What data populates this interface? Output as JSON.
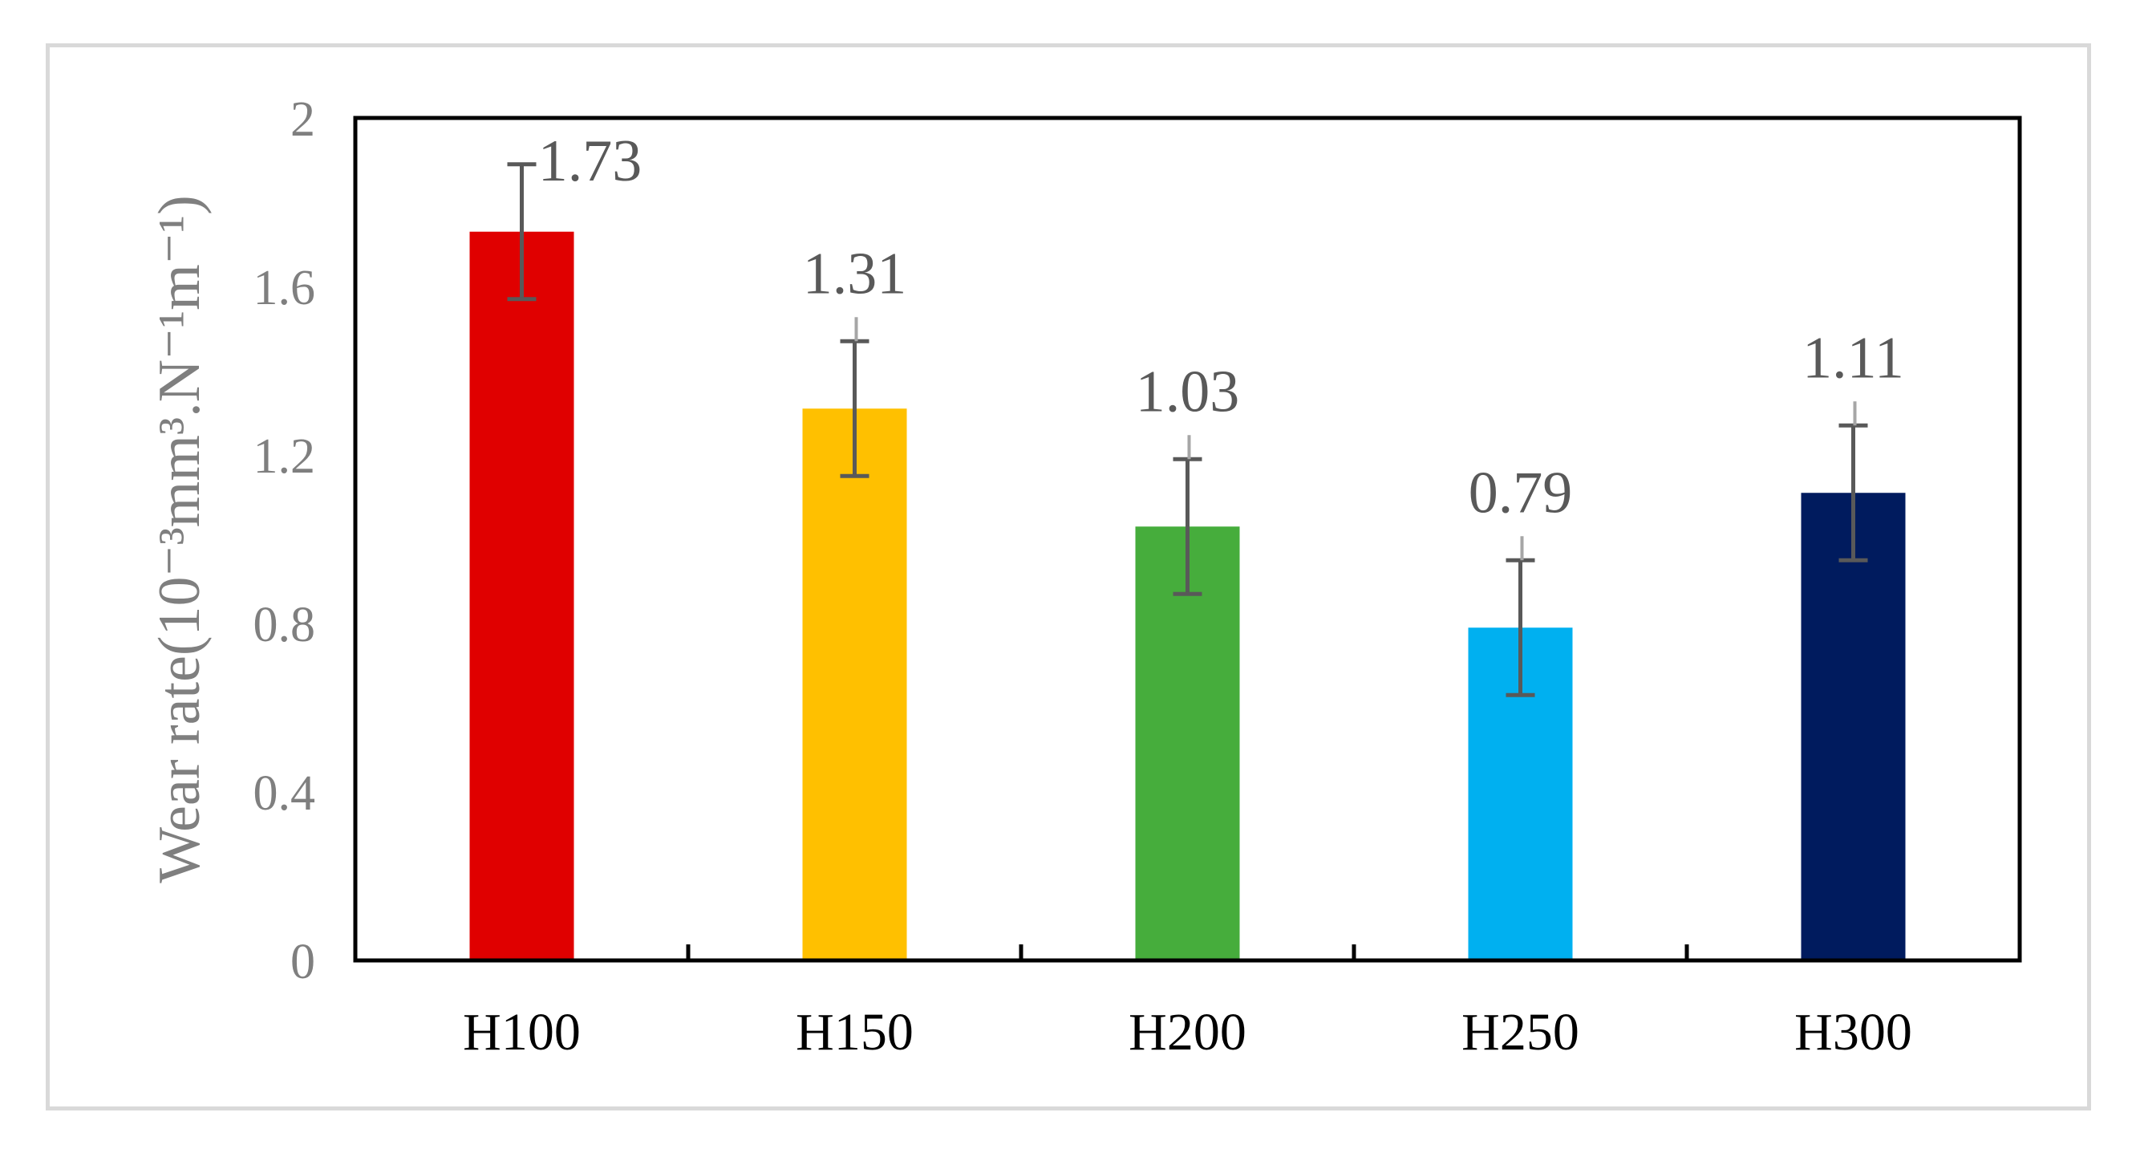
{
  "chart_data": {
    "type": "bar",
    "categories": [
      "H100",
      "H150",
      "H200",
      "H250",
      "H300"
    ],
    "values": [
      1.73,
      1.31,
      1.03,
      0.79,
      1.11
    ],
    "error_plus": [
      0.16,
      0.16,
      0.16,
      0.16,
      0.16
    ],
    "error_minus": [
      0.16,
      0.16,
      0.16,
      0.16,
      0.16
    ],
    "data_labels": [
      "1.73",
      "1.31",
      "1.03",
      "0.79",
      "1.11"
    ],
    "colors": [
      "#e00000",
      "#ffc000",
      "#46ad3c",
      "#00b0f0",
      "#001b5e"
    ],
    "title": "",
    "xlabel": "",
    "ylabel": "Wear rate(10⁻³mm³.N⁻¹m⁻¹)",
    "ylim": [
      0,
      2
    ],
    "yticks": [
      "0",
      "0.4",
      "0.8",
      "1.2",
      "1.6",
      "2"
    ],
    "ytick_values": [
      0,
      0.4,
      0.8,
      1.2,
      1.6,
      2
    ],
    "grid": false,
    "legend": "none"
  }
}
